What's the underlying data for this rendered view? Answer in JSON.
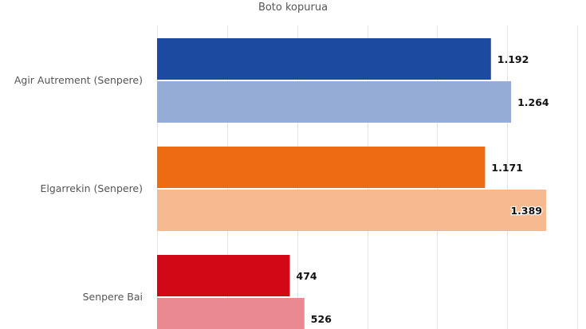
{
  "chart_data": {
    "type": "bar",
    "orientation": "horizontal",
    "title": "Boto kopurua",
    "categories": [
      "Agir Autrement (Senpere)",
      "Elgarrekin (Senpere)",
      "Senpere Bai"
    ],
    "bars": [
      [
        {
          "value": 1192,
          "label": "1.192",
          "color": "#1b4aa0"
        },
        {
          "value": 1264,
          "label": "1.264",
          "color": "#8fa8d4"
        }
      ],
      [
        {
          "value": 1171,
          "label": "1.171",
          "color": "#ed6b12"
        },
        {
          "value": 1389,
          "label": "1.389",
          "color": "#f5b58a"
        }
      ],
      [
        {
          "value": 474,
          "label": "474",
          "color": "#d30816"
        },
        {
          "value": 526,
          "label": "526",
          "color": "#e9838a"
        }
      ]
    ],
    "xlim": [
      0,
      1500
    ],
    "x_grid_step": 250,
    "grid": true
  }
}
